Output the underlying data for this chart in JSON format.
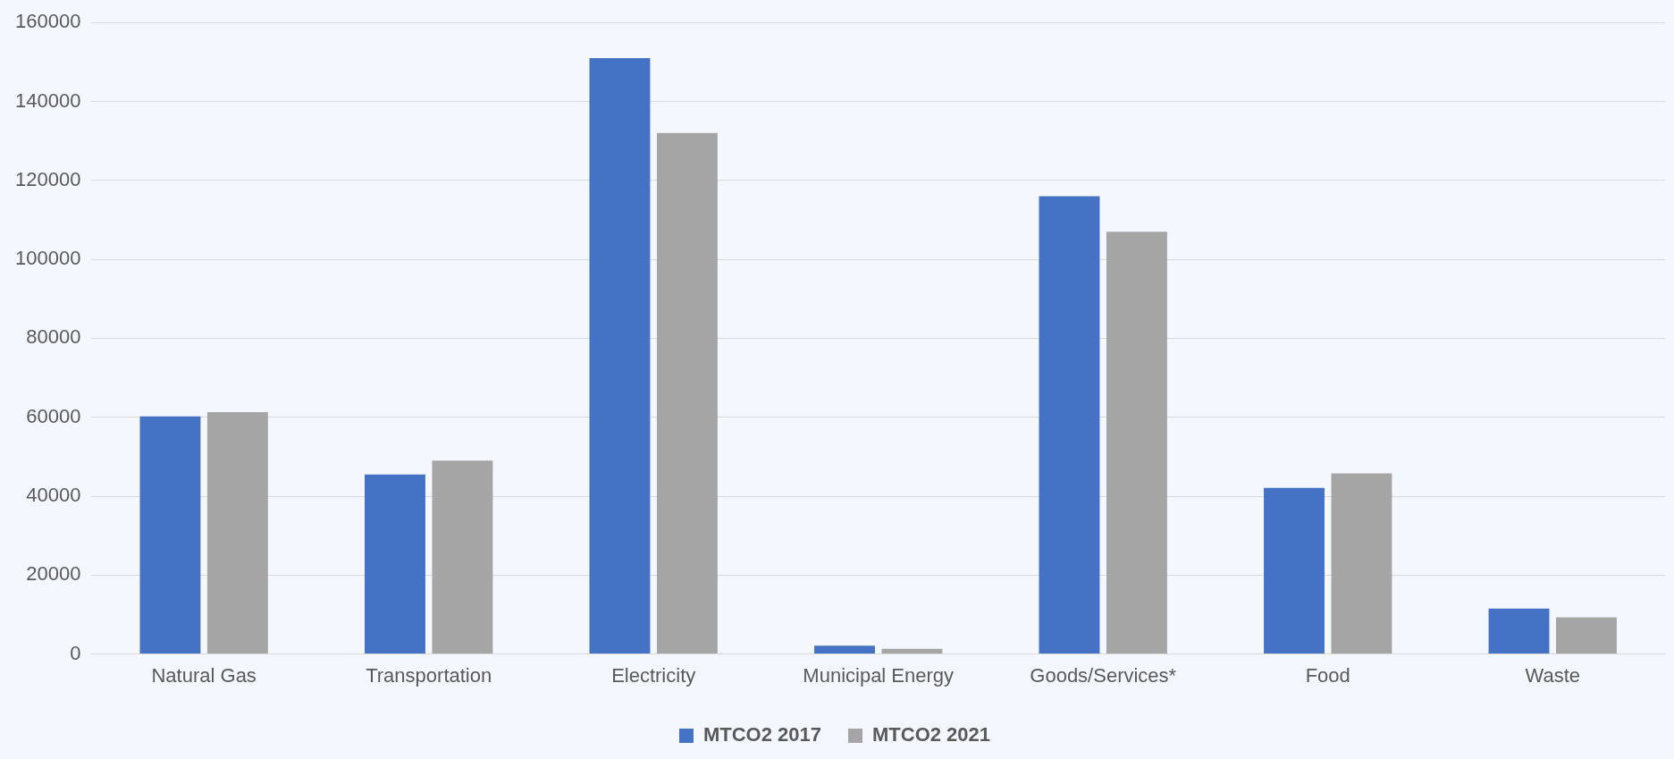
{
  "chart_data": {
    "type": "bar",
    "categories": [
      "Natural Gas",
      "Transportation",
      "Electricity",
      "Municipal Energy",
      "Goods/Services*",
      "Food",
      "Waste"
    ],
    "series": [
      {
        "name": "MTCO2 2017",
        "color": "#4472c4",
        "values": [
          60200,
          45500,
          151000,
          2100,
          116000,
          42100,
          11500
        ]
      },
      {
        "name": "MTCO2 2021",
        "color": "#a5a5a5",
        "values": [
          61300,
          49000,
          132000,
          1300,
          107000,
          45800,
          9300
        ]
      }
    ],
    "ylim": [
      0,
      160000
    ],
    "yticks": [
      0,
      20000,
      40000,
      60000,
      80000,
      100000,
      120000,
      140000,
      160000
    ],
    "grid": "y",
    "legend": "bottom"
  }
}
